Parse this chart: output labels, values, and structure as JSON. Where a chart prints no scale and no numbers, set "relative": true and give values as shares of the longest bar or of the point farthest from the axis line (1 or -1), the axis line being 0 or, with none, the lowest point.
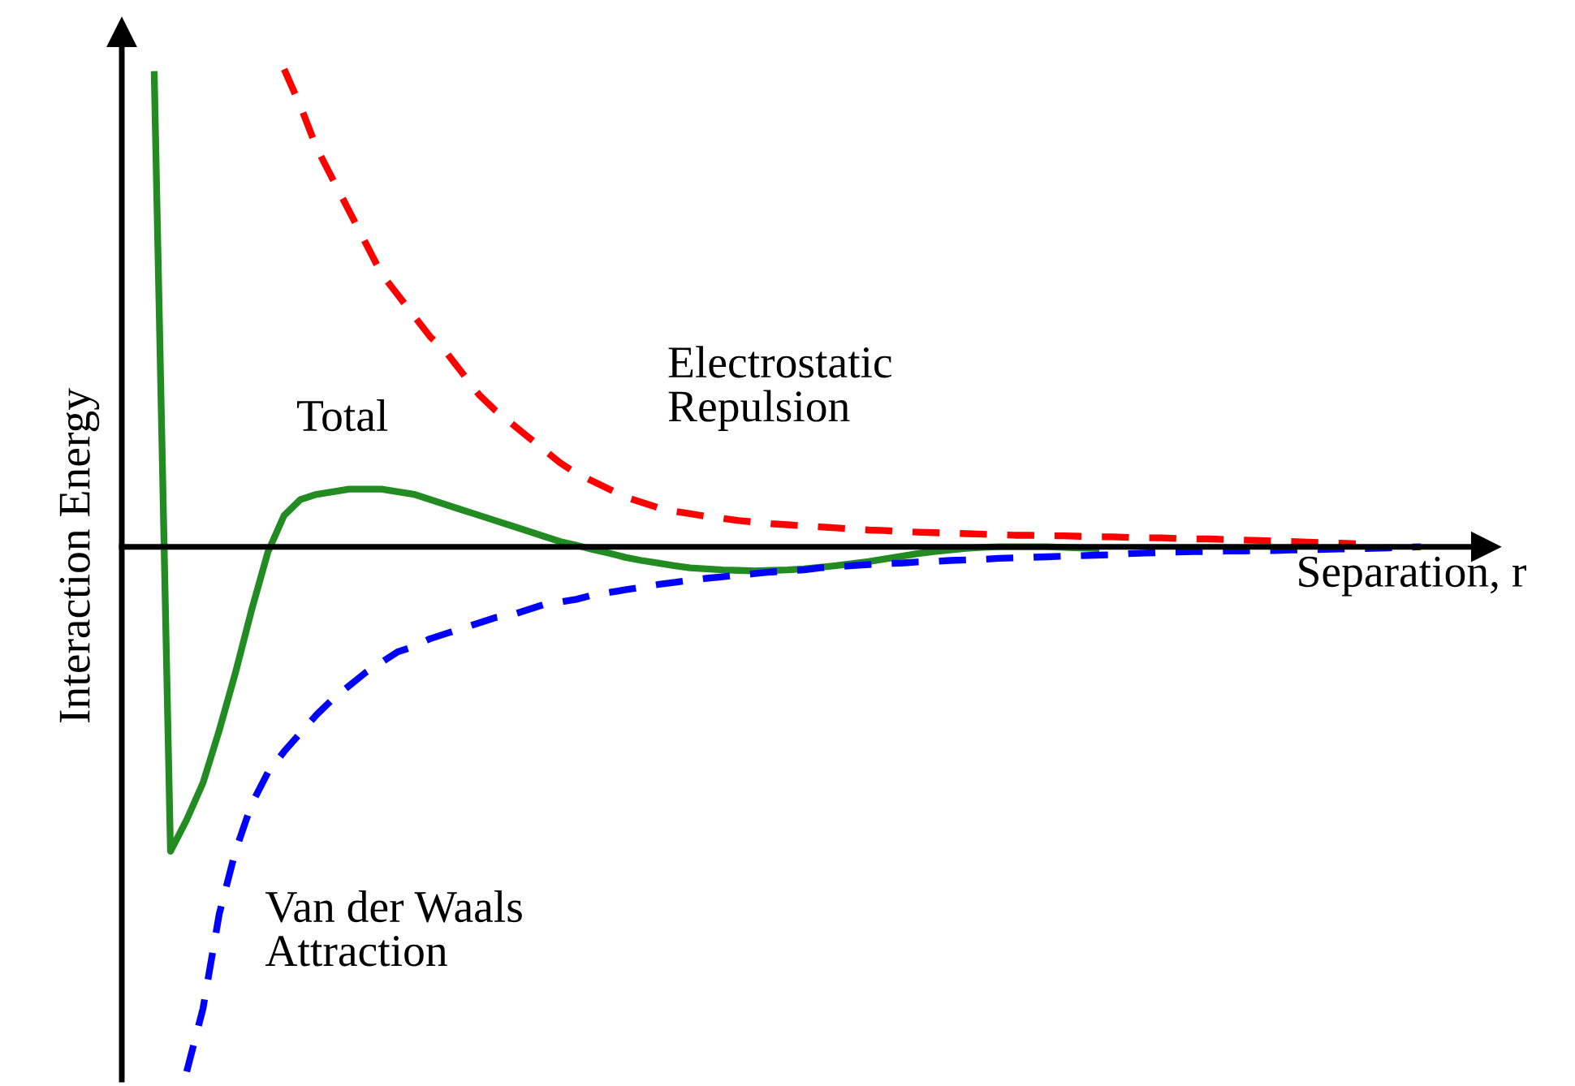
{
  "chart_data": {
    "type": "line",
    "relative": true,
    "xlabel": "Separation, r",
    "ylabel": "Interaction Energy",
    "legend": false,
    "marker": "none",
    "categories": [
      null,
      null,
      null,
      null,
      null,
      null,
      null,
      null,
      null,
      null,
      null,
      null,
      null,
      null,
      null,
      null,
      null,
      null,
      null,
      null,
      null,
      null,
      null,
      null,
      null,
      null,
      null,
      null,
      null,
      null,
      null,
      null,
      null,
      null,
      null,
      null,
      null,
      null,
      null,
      null,
      null,
      null,
      null,
      null,
      null,
      null,
      null,
      null,
      null,
      null,
      null,
      null,
      null,
      null,
      null,
      null,
      null,
      null,
      null,
      null,
      null,
      null,
      null,
      null,
      null,
      null,
      null,
      null,
      null,
      null,
      null,
      null,
      null,
      null,
      null,
      null,
      null,
      null,
      null,
      null,
      null,
      null,
      null,
      null,
      null
    ],
    "series": [
      {
        "name": "Electrostatic\nRepulsion",
        "color": "#ff0000",
        "line_style": "dashed",
        "values": [
          null,
          null,
          null,
          null,
          null,
          null,
          null,
          null,
          null,
          null,
          0.91,
          0.84,
          0.76,
          0.7,
          0.64,
          0.58,
          0.52,
          0.48,
          0.44,
          0.4,
          0.37,
          0.33,
          0.29,
          0.26,
          0.235,
          0.21,
          0.185,
          0.16,
          0.14,
          0.125,
          0.11,
          0.095,
          0.085,
          0.075,
          0.068,
          0.063,
          0.058,
          0.054,
          0.05,
          0.047,
          0.044,
          0.042,
          0.04,
          0.038,
          0.036,
          0.034,
          0.032,
          0.031,
          0.029,
          0.028,
          0.027,
          0.026,
          0.025,
          0.024,
          0.023,
          0.022,
          0.022,
          0.021,
          0.021,
          0.02,
          0.019,
          0.019,
          0.018,
          0.017,
          0.017,
          0.016,
          0.015,
          0.015,
          0.014,
          0.013,
          0.012,
          0.011,
          0.01,
          0.009,
          0.008,
          0.007,
          0.006,
          null,
          null,
          null,
          null,
          null,
          null,
          null,
          null
        ]
      },
      {
        "name": "Total",
        "color": "#228b22",
        "line_style": "solid",
        "values": [
          null,
          null,
          0.9,
          -0.58,
          -0.52,
          -0.45,
          -0.35,
          -0.24,
          -0.12,
          -0.01,
          0.06,
          0.09,
          0.1,
          0.105,
          0.11,
          0.11,
          0.11,
          0.105,
          0.1,
          0.09,
          0.08,
          0.07,
          0.06,
          0.05,
          0.04,
          0.03,
          0.02,
          0.01,
          0.003,
          -0.005,
          -0.012,
          -0.02,
          -0.026,
          -0.031,
          -0.036,
          -0.04,
          -0.042,
          -0.044,
          -0.045,
          -0.046,
          -0.045,
          -0.044,
          -0.042,
          -0.039,
          -0.036,
          -0.032,
          -0.028,
          -0.023,
          -0.018,
          -0.013,
          -0.009,
          -0.006,
          -0.003,
          -0.001,
          0,
          0,
          0,
          0,
          -0.001,
          -0.002,
          -0.003,
          null,
          null,
          null,
          null,
          null,
          null,
          null,
          null,
          null,
          null,
          null,
          null,
          null,
          null,
          null,
          null,
          null,
          null,
          null,
          null,
          null,
          null,
          null,
          null
        ]
      },
      {
        "name": "Van der Waals\nAttraction",
        "color": "#0000ff",
        "line_style": "dashed",
        "values": [
          null,
          null,
          null,
          null,
          -1.0,
          -0.88,
          -0.7,
          -0.58,
          -0.49,
          -0.43,
          -0.39,
          -0.355,
          -0.32,
          -0.29,
          -0.265,
          -0.24,
          -0.22,
          -0.2,
          -0.19,
          -0.175,
          -0.165,
          -0.155,
          -0.145,
          -0.135,
          -0.13,
          -0.12,
          -0.11,
          -0.105,
          -0.1,
          -0.092,
          -0.087,
          -0.082,
          -0.077,
          -0.072,
          -0.068,
          -0.064,
          -0.06,
          -0.057,
          -0.054,
          -0.051,
          -0.048,
          -0.046,
          -0.044,
          -0.04,
          -0.038,
          -0.036,
          -0.034,
          -0.032,
          -0.031,
          -0.029,
          -0.028,
          -0.026,
          -0.025,
          -0.024,
          -0.022,
          -0.021,
          -0.02,
          -0.019,
          -0.018,
          -0.017,
          -0.016,
          -0.015,
          -0.013,
          -0.012,
          -0.011,
          -0.01,
          -0.009,
          -0.009,
          -0.008,
          -0.008,
          -0.007,
          -0.007,
          -0.006,
          -0.006,
          -0.005,
          -0.004,
          -0.004,
          -0.003,
          -0.002,
          -0.001,
          0,
          null,
          null,
          null,
          null
        ]
      }
    ]
  }
}
